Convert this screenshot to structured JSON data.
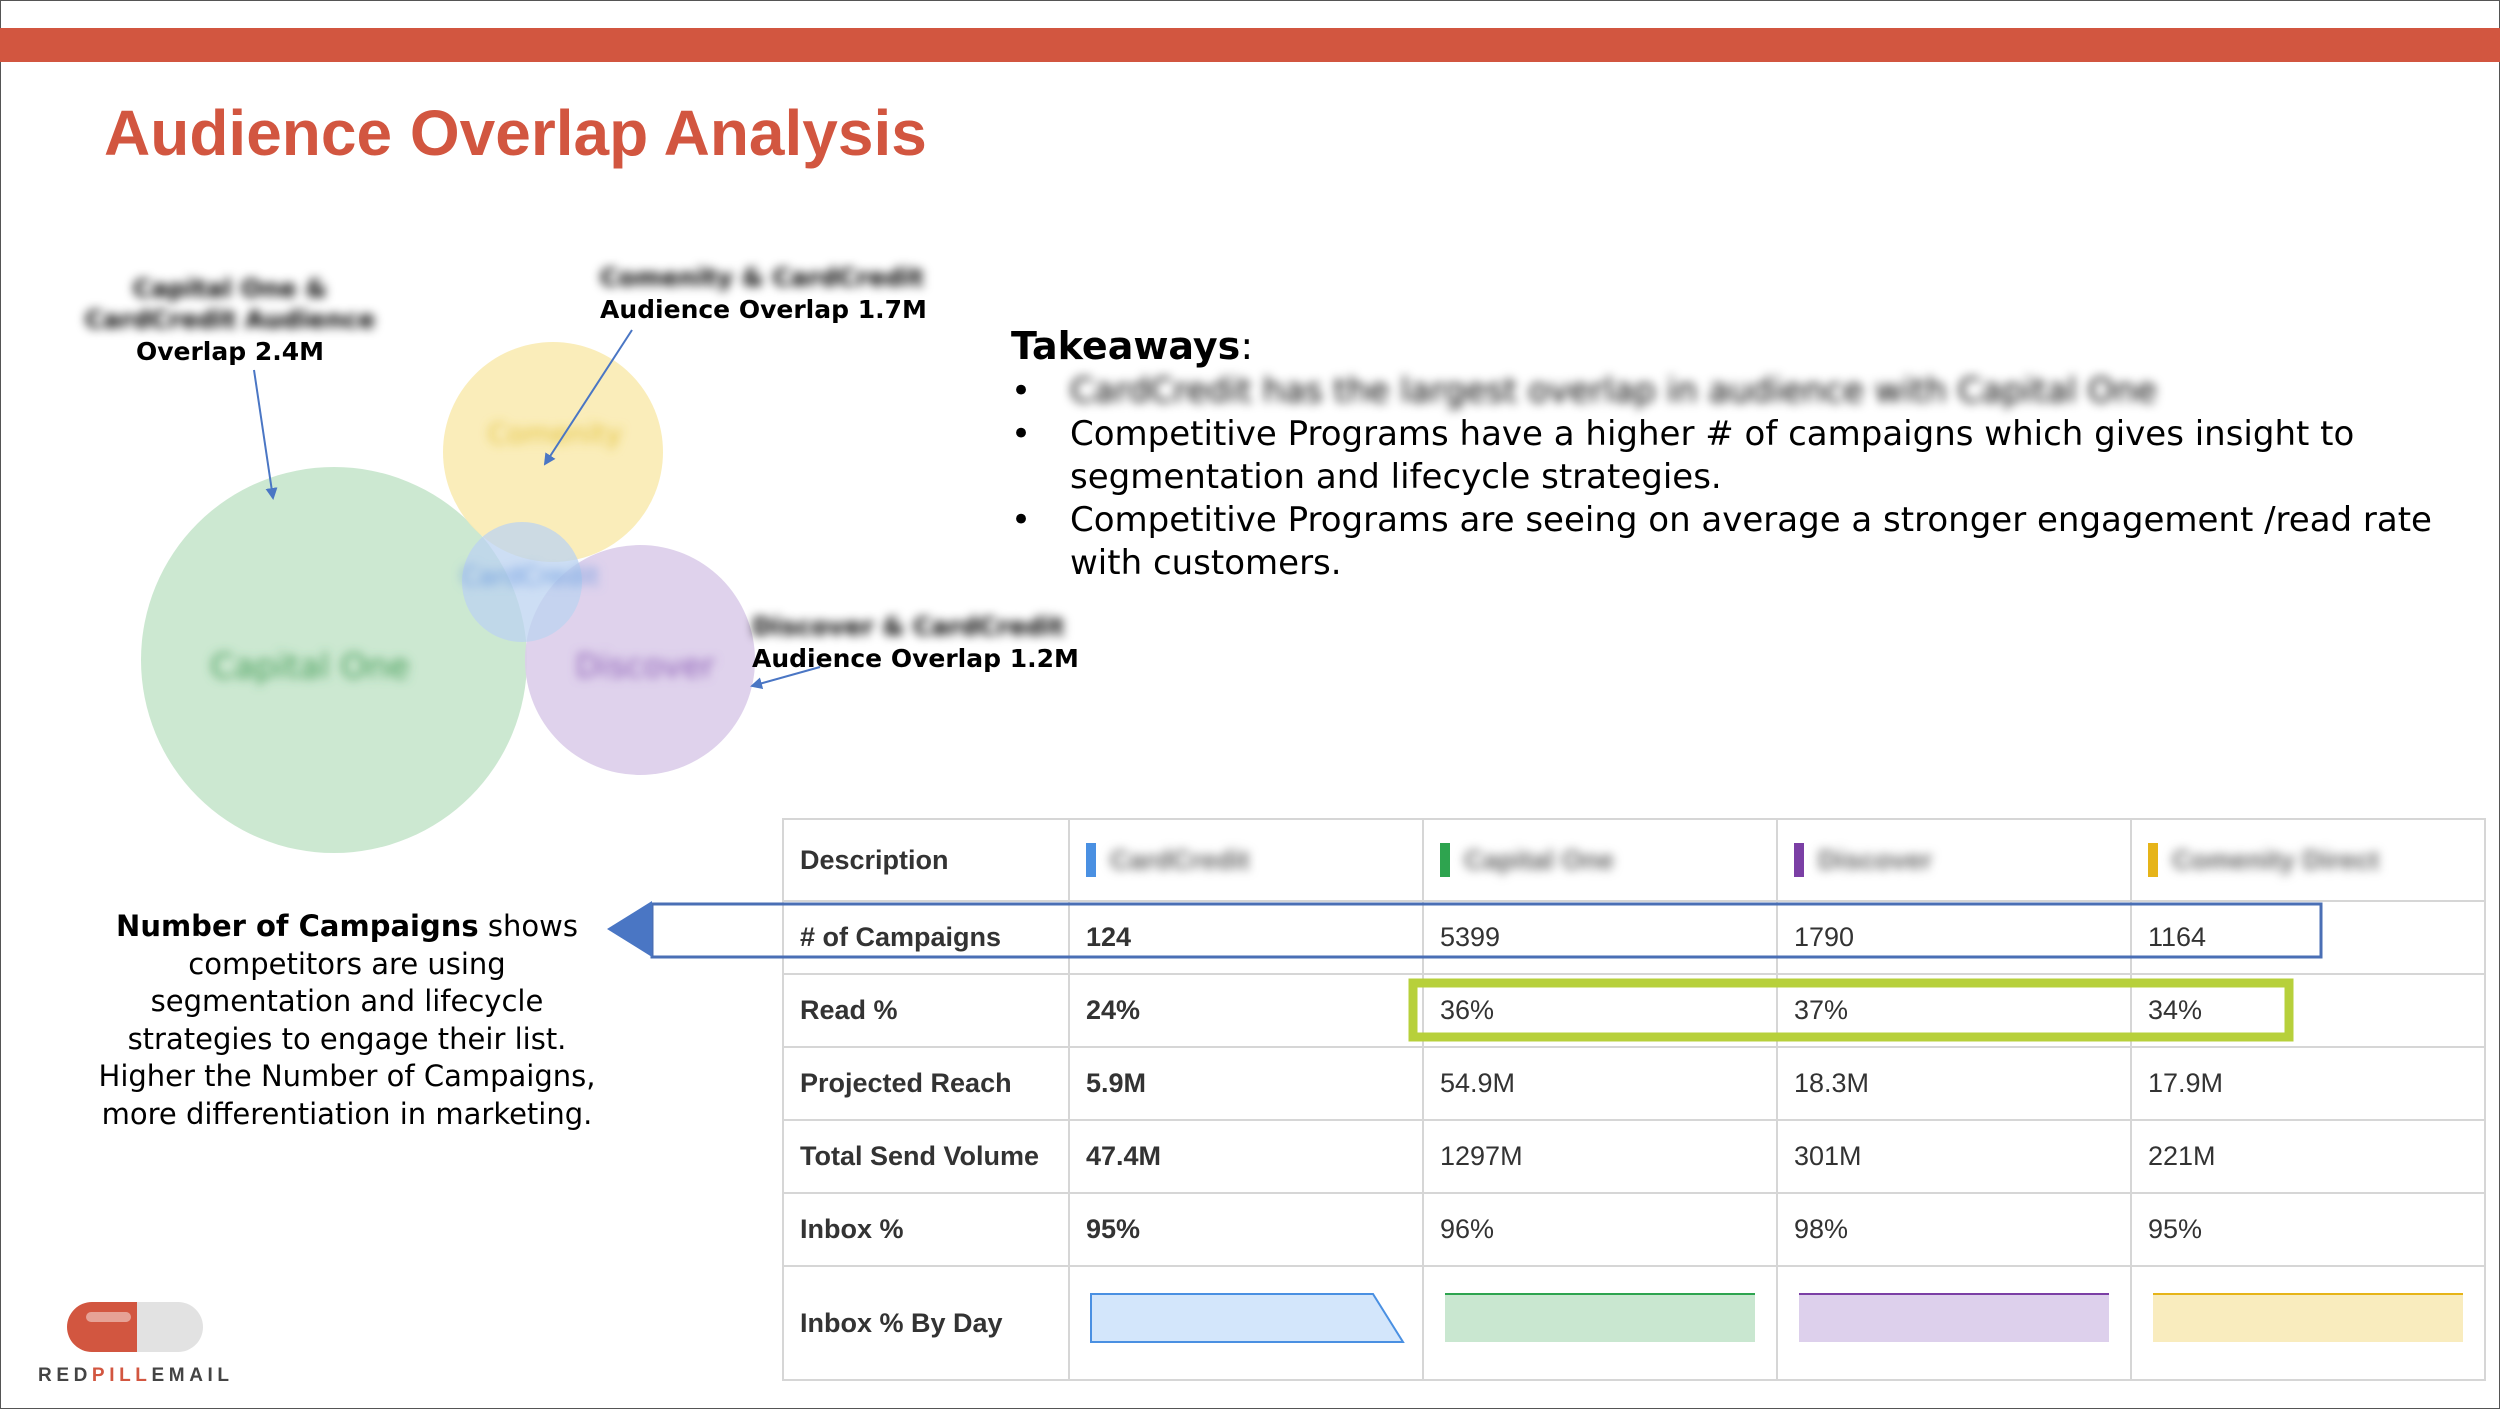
{
  "slide": {
    "title": "Audience Overlap Analysis",
    "accent_color": "#d25640"
  },
  "venn": {
    "circles": [
      {
        "label": "Capital One",
        "color": "#c6e6cc"
      },
      {
        "label": "Comenity",
        "color": "#f9ebb3"
      },
      {
        "label": "Discover",
        "color": "#dccdea"
      },
      {
        "label": "CardCredit",
        "color": "#bcd3f0"
      }
    ],
    "annotations": {
      "capital_one": {
        "blurred_lines": [
          "Capital One &",
          "CardCredit Audience"
        ],
        "value_line": "Overlap 2.4M"
      },
      "comenity": {
        "blurred_line": "Comenity & CardCredit",
        "value_line": "Audience Overlap 1.7M"
      },
      "discover": {
        "blurred_line": "Discover & CardCredit",
        "value_line": "Audience Overlap 1.2M"
      }
    }
  },
  "takeaways": {
    "heading": "Takeaways",
    "colon": ":",
    "bullet_symbol": "•",
    "items": [
      "CardCredit has the largest overlap in audience with Capital One",
      "Competitive Programs have a higher # of campaigns which gives insight to segmentation and lifecycle strategies.",
      "Competitive Programs are seeing on average a stronger engagement /read rate with customers."
    ]
  },
  "note": {
    "bold": "Number of Campaigns",
    "rest_first": " shows",
    "lines": [
      "competitors are using",
      "segmentation and lifecycle",
      "strategies to engage their list.",
      "Higher the Number of Campaigns,",
      "more differentiation in marketing."
    ]
  },
  "table": {
    "header_label": "Description",
    "columns": [
      {
        "name": "CardCredit",
        "color": "#4a90e2",
        "fill": "#d3e6fb"
      },
      {
        "name": "Capital One",
        "color": "#2ea44f",
        "fill": "#c9e7d0"
      },
      {
        "name": "Discover",
        "color": "#7b3fa5",
        "fill": "#ddd0ec"
      },
      {
        "name": "Comenity Direct",
        "color": "#e6b419",
        "fill": "#f9ecbe"
      }
    ],
    "rows": [
      {
        "label": "# of Campaigns",
        "values": [
          "124",
          "5399",
          "1790",
          "1164"
        ]
      },
      {
        "label": "Read %",
        "values": [
          "24%",
          "36%",
          "37%",
          "34%"
        ]
      },
      {
        "label": "Projected Reach",
        "values": [
          "5.9M",
          "54.9M",
          "18.3M",
          "17.9M"
        ]
      },
      {
        "label": "Total Send Volume",
        "values": [
          "47.4M",
          "1297M",
          "301M",
          "221M"
        ]
      },
      {
        "label": "Inbox %",
        "values": [
          "95%",
          "96%",
          "98%",
          "95%"
        ]
      }
    ],
    "sparkline_label": "Inbox % By Day",
    "highlight_colors": {
      "campaigns_box": "#4a6fb5",
      "read_box": "#b7d03b"
    }
  },
  "logo": {
    "text_a": "RED",
    "text_b": "PILL",
    "text_c": "EMAIL",
    "pill_left": "#d25640",
    "pill_right": "#e2e2e2"
  }
}
